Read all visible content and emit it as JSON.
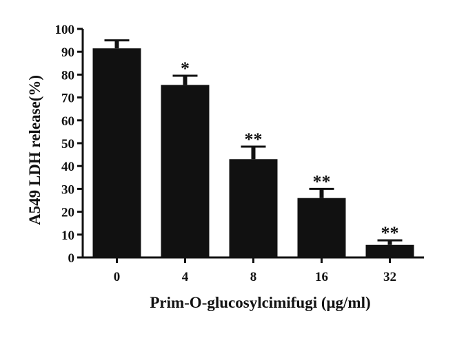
{
  "chart_data": {
    "type": "bar",
    "categories": [
      "0",
      "4",
      "8",
      "16",
      "32"
    ],
    "values": [
      91.5,
      75.5,
      43,
      26,
      5.5
    ],
    "errors": [
      3.5,
      4,
      5.5,
      4,
      2
    ],
    "significance": [
      "",
      "*",
      "**",
      "**",
      "**"
    ],
    "title": "",
    "xlabel": "Prim-O-glucosylcimifugi (μg/ml)",
    "ylabel": "A549 LDH release(%)",
    "ylim": [
      0,
      100
    ],
    "yticks": [
      "0",
      "10",
      "20",
      "30",
      "40",
      "50",
      "60",
      "70",
      "80",
      "90",
      "100"
    ],
    "grid": false,
    "legend": "none",
    "bar_color": "#111111"
  }
}
